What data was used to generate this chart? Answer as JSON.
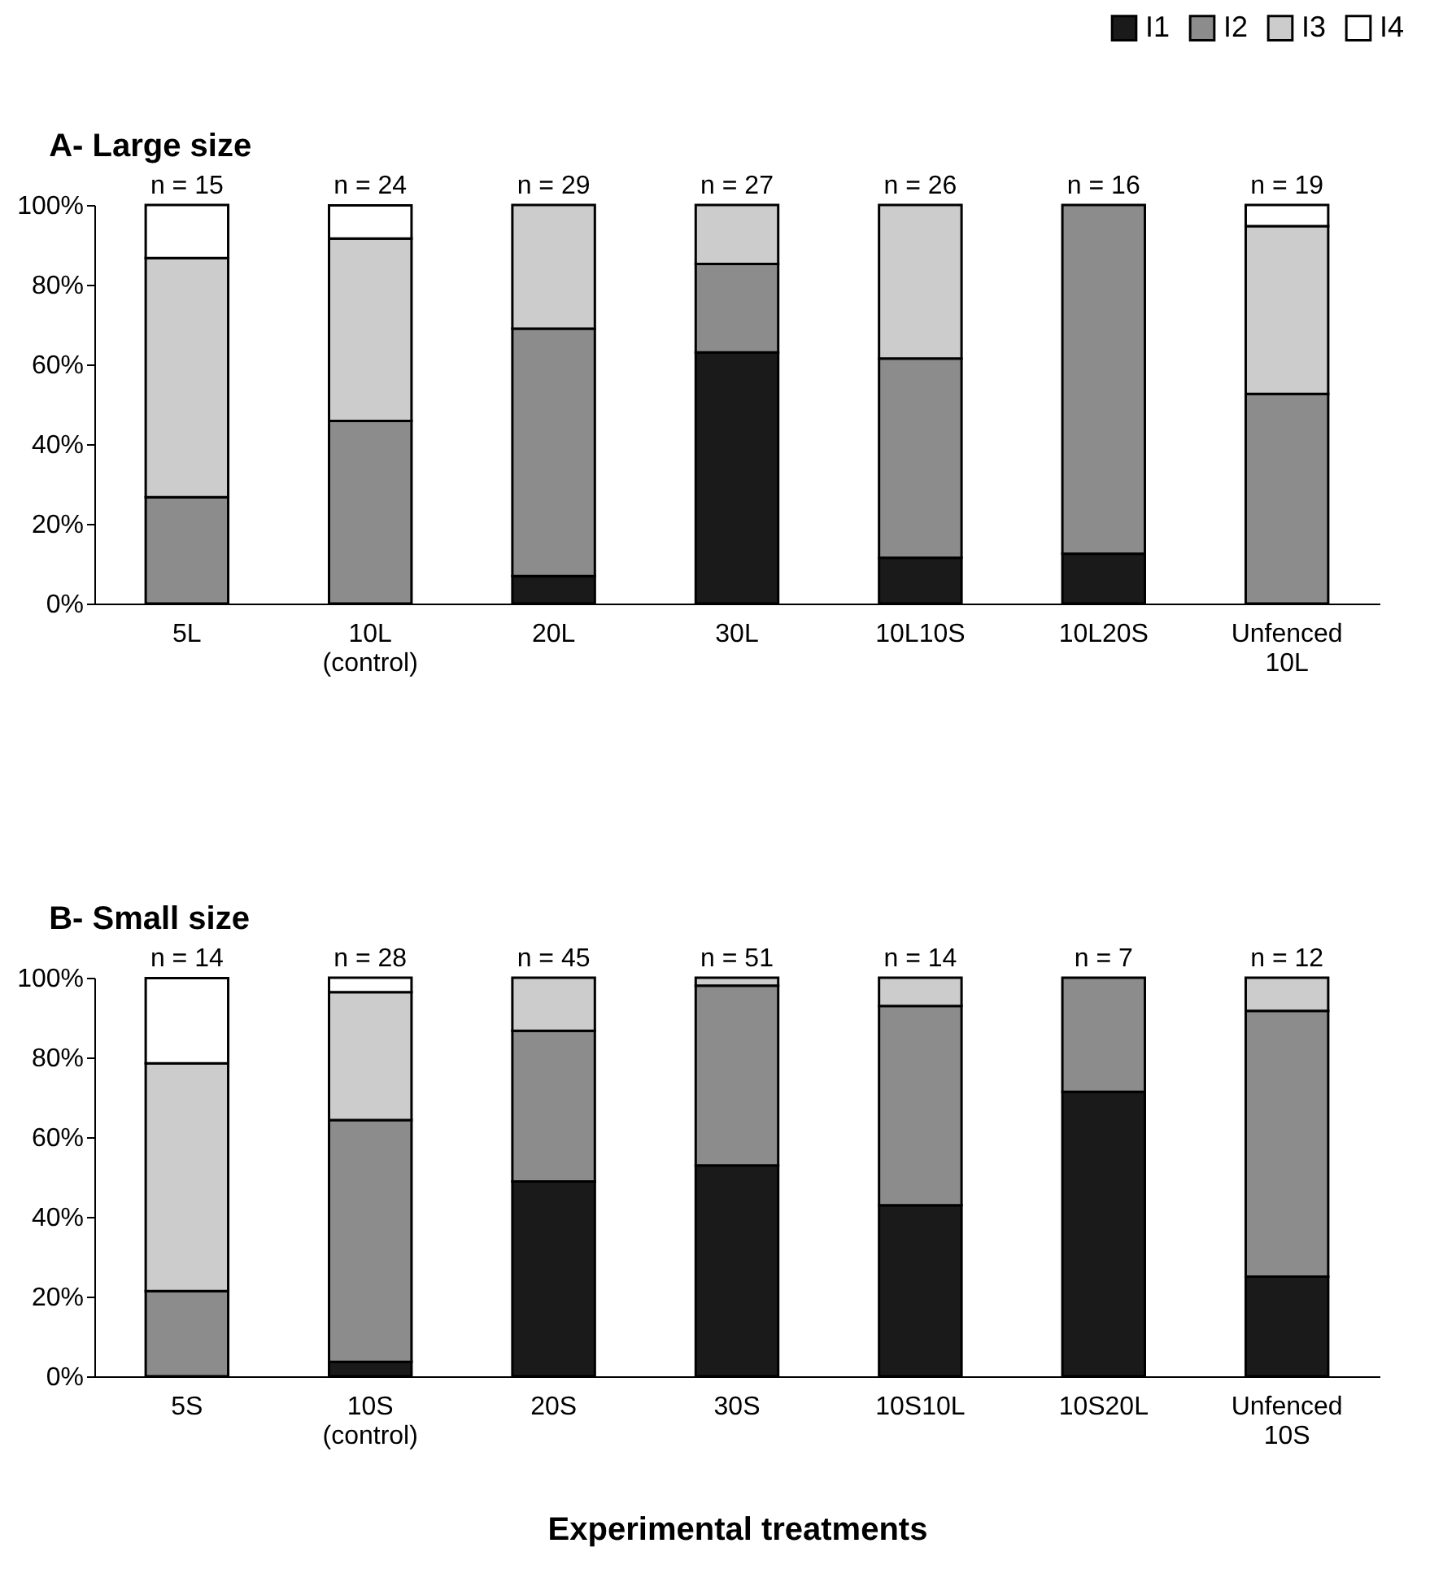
{
  "chart_data": [
    {
      "type": "bar",
      "stacked": true,
      "title": "A- Large size",
      "categories": [
        "5L",
        "10L\n(control)",
        "20L",
        "30L",
        "10L10S",
        "10L20S",
        "Unfenced\n10L"
      ],
      "series": [
        {
          "name": "I1",
          "color": "#1a1a1a",
          "values": [
            null,
            null,
            6.9,
            63.0,
            11.5,
            12.5,
            null
          ]
        },
        {
          "name": "I2",
          "color": "#8c8c8c",
          "values": [
            26.7,
            45.8,
            62.1,
            22.2,
            50.0,
            87.5,
            52.6
          ]
        },
        {
          "name": "I3",
          "color": "#cccccc",
          "values": [
            60.0,
            45.8,
            31.0,
            14.8,
            38.5,
            null,
            42.1
          ]
        },
        {
          "name": "I4",
          "color": "#ffffff",
          "values": [
            13.3,
            8.3,
            null,
            null,
            null,
            null,
            5.3
          ]
        }
      ],
      "ylim": [
        0,
        100
      ],
      "yticks": [
        {
          "value": 0,
          "label": "0%"
        },
        {
          "value": 20,
          "label": "20%"
        },
        {
          "value": 40,
          "label": "40%"
        },
        {
          "value": 60,
          "label": "60%"
        },
        {
          "value": 80,
          "label": "80%"
        },
        {
          "value": 100,
          "label": "100%"
        }
      ],
      "legend": "top right",
      "annotations": [
        {
          "text": "n = 15",
          "x": "5L",
          "y": 100
        },
        {
          "text": "n = 24",
          "x": "10L\n(control)",
          "y": 100
        },
        {
          "text": "n = 29",
          "x": "20L",
          "y": 100
        },
        {
          "text": "n = 27",
          "x": "30L",
          "y": 100
        },
        {
          "text": "n = 26",
          "x": "10L10S",
          "y": 100
        },
        {
          "text": "n = 16",
          "x": "10L20S",
          "y": 100
        },
        {
          "text": "n = 19",
          "x": "Unfenced\n10L",
          "y": 100
        }
      ]
    },
    {
      "type": "bar",
      "stacked": true,
      "title": "B- Small size",
      "xlabel": "Experimental treatments",
      "categories": [
        "5S",
        "10S\n(control)",
        "20S",
        "30S",
        "10S10L",
        "10S20L",
        "Unfenced\n10S"
      ],
      "series": [
        {
          "name": "I1",
          "color": "#1a1a1a",
          "values": [
            null,
            3.6,
            48.9,
            52.9,
            42.9,
            71.4,
            25.0
          ]
        },
        {
          "name": "I2",
          "color": "#8c8c8c",
          "values": [
            21.4,
            60.7,
            37.8,
            45.1,
            50.0,
            28.6,
            66.7
          ]
        },
        {
          "name": "I3",
          "color": "#cccccc",
          "values": [
            57.1,
            32.1,
            13.3,
            2.0,
            7.1,
            null,
            8.3
          ]
        },
        {
          "name": "I4",
          "color": "#ffffff",
          "values": [
            21.4,
            3.6,
            null,
            null,
            null,
            null,
            null
          ]
        }
      ],
      "ylim": [
        0,
        100
      ],
      "yticks": [
        {
          "value": 0,
          "label": "0%"
        },
        {
          "value": 20,
          "label": "20%"
        },
        {
          "value": 40,
          "label": "40%"
        },
        {
          "value": 60,
          "label": "60%"
        },
        {
          "value": 80,
          "label": "80%"
        },
        {
          "value": 100,
          "label": "100%"
        }
      ],
      "annotations": [
        {
          "text": "n = 14",
          "x": "5S",
          "y": 100
        },
        {
          "text": "n = 28",
          "x": "10S\n(control)",
          "y": 100
        },
        {
          "text": "n = 45",
          "x": "20S",
          "y": 100
        },
        {
          "text": "n = 51",
          "x": "30S",
          "y": 100
        },
        {
          "text": "n = 14",
          "x": "10S10L",
          "y": 100
        },
        {
          "text": "n = 7",
          "x": "10S20L",
          "y": 100
        },
        {
          "text": "n = 12",
          "x": "Unfenced\n10S",
          "y": 100
        }
      ]
    }
  ]
}
